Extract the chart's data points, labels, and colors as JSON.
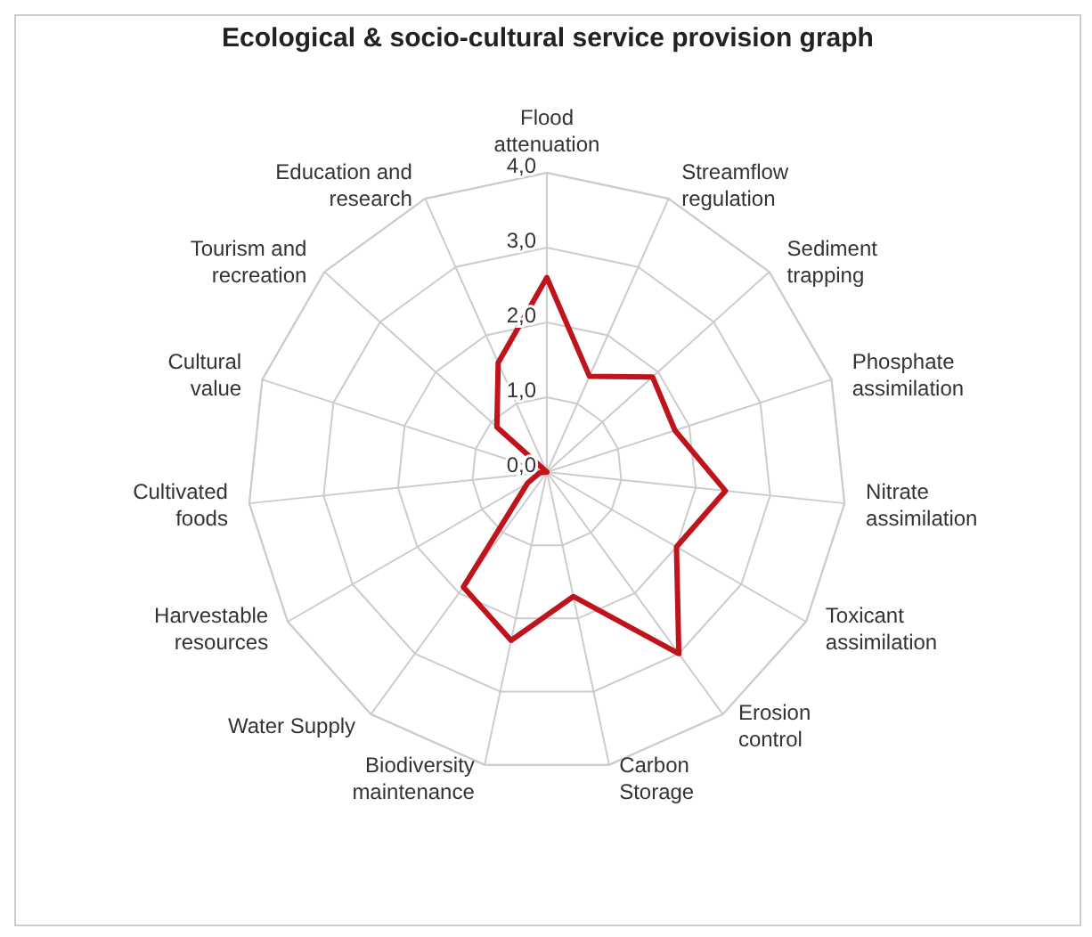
{
  "chart_data": {
    "type": "radar",
    "title": "Ecological & socio-cultural service provision graph",
    "categories": [
      "Flood attenuation",
      "Streamflow regulation",
      "Sediment trapping",
      "Phosphate assimilation",
      "Nitrate assimilation",
      "Toxicant assimilation",
      "Erosion control",
      "Carbon Storage",
      "Biodiversity maintenance",
      "Water Supply",
      "Harvestable resources",
      "Cultivated foods",
      "Cultural value",
      "Tourism and recreation",
      "Education and research"
    ],
    "series": [
      {
        "color": "#c0141c",
        "values": [
          2.6,
          1.4,
          1.9,
          1.8,
          2.4,
          2.0,
          3.0,
          1.7,
          2.3,
          1.9,
          0.3,
          0.1,
          0,
          0.9,
          1.6
        ]
      }
    ],
    "ylim": [
      0,
      4
    ],
    "yticks": [
      {
        "value": 0,
        "label": "0,0"
      },
      {
        "value": 1,
        "label": "1,0"
      },
      {
        "value": 2,
        "label": "2,0"
      },
      {
        "value": 3,
        "label": "3,0"
      },
      {
        "value": 4,
        "label": "4,0"
      }
    ],
    "grid": true,
    "marker": "none",
    "line_style": "solid"
  }
}
